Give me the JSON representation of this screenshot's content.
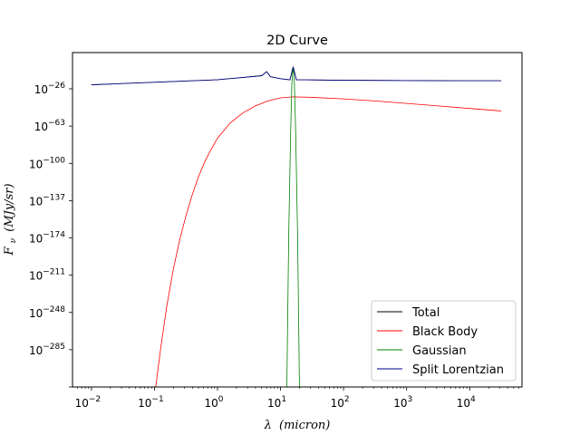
{
  "chart_data": {
    "type": "line",
    "title": "2D Curve",
    "xlabel_base": "λ",
    "xlabel_unit": "(micron)",
    "ylabel_base": "F",
    "ylabel_sub": "ν",
    "ylabel_unit": "(MJy/sr)",
    "xscale": "log",
    "yscale": "log",
    "xlim_exp": [
      -2.3,
      4.83
    ],
    "ylim_exp": [
      -322,
      10
    ],
    "x_tick_exps": [
      -2,
      -1,
      0,
      1,
      2,
      3,
      4
    ],
    "y_tick_exps": [
      -26,
      -63,
      -100,
      -137,
      -174,
      -211,
      -248,
      -285
    ],
    "x_tick_labels": [
      "10",
      "10",
      "10",
      "10",
      "10",
      "10",
      "10"
    ],
    "x_tick_sups": [
      "−2",
      "−1",
      "0",
      "1",
      "2",
      "3",
      "4"
    ],
    "y_tick_labels": [
      "10",
      "10",
      "10",
      "10",
      "10",
      "10",
      "10",
      "10"
    ],
    "y_tick_sups": [
      "−26",
      "−63",
      "−100",
      "−137",
      "−174",
      "−211",
      "−248",
      "−285"
    ],
    "legend_position": "lower right",
    "grid": false,
    "series": [
      {
        "name": "Total",
        "color": "#000000",
        "points_log": [
          [
            -2,
            -22
          ],
          [
            0,
            -17
          ],
          [
            0.7,
            -13
          ],
          [
            0.78,
            -9
          ],
          [
            0.84,
            -14
          ],
          [
            1,
            -16
          ],
          [
            1.15,
            -17
          ],
          [
            1.2,
            -4
          ],
          [
            1.25,
            -17
          ],
          [
            2,
            -17.5
          ],
          [
            3,
            -17.8
          ],
          [
            4,
            -18
          ],
          [
            4.5,
            -18
          ]
        ]
      },
      {
        "name": "Black Body",
        "color": "#ff0000",
        "points_log": [
          [
            -0.98,
            -322
          ],
          [
            -0.9,
            -283
          ],
          [
            -0.8,
            -240
          ],
          [
            -0.7,
            -205
          ],
          [
            -0.6,
            -176
          ],
          [
            -0.5,
            -152
          ],
          [
            -0.4,
            -131
          ],
          [
            -0.3,
            -113
          ],
          [
            -0.2,
            -98
          ],
          [
            -0.1,
            -86
          ],
          [
            0,
            -75
          ],
          [
            0.2,
            -60
          ],
          [
            0.4,
            -50
          ],
          [
            0.6,
            -43
          ],
          [
            0.8,
            -38
          ],
          [
            1,
            -35
          ],
          [
            1.2,
            -34
          ],
          [
            1.5,
            -34.5
          ],
          [
            2,
            -36
          ],
          [
            2.5,
            -38
          ],
          [
            3,
            -40.5
          ],
          [
            3.5,
            -43
          ],
          [
            4,
            -45.5
          ],
          [
            4.5,
            -48
          ]
        ]
      },
      {
        "name": "Gaussian",
        "color": "#008000",
        "points_log": [
          [
            1.1,
            -322
          ],
          [
            1.13,
            -170
          ],
          [
            1.16,
            -70
          ],
          [
            1.18,
            -20
          ],
          [
            1.2,
            -4
          ],
          [
            1.22,
            -20
          ],
          [
            1.24,
            -70
          ],
          [
            1.27,
            -170
          ],
          [
            1.3,
            -322
          ]
        ]
      },
      {
        "name": "Split Lorentzian",
        "color": "#00008b",
        "points_log": [
          [
            -2,
            -22
          ],
          [
            0,
            -17
          ],
          [
            0.7,
            -13
          ],
          [
            0.78,
            -9
          ],
          [
            0.84,
            -14
          ],
          [
            1,
            -16
          ],
          [
            1.15,
            -17
          ],
          [
            1.2,
            -4
          ],
          [
            1.25,
            -17
          ],
          [
            2,
            -17.5
          ],
          [
            3,
            -17.8
          ],
          [
            4,
            -18
          ],
          [
            4.5,
            -18
          ]
        ]
      }
    ]
  }
}
